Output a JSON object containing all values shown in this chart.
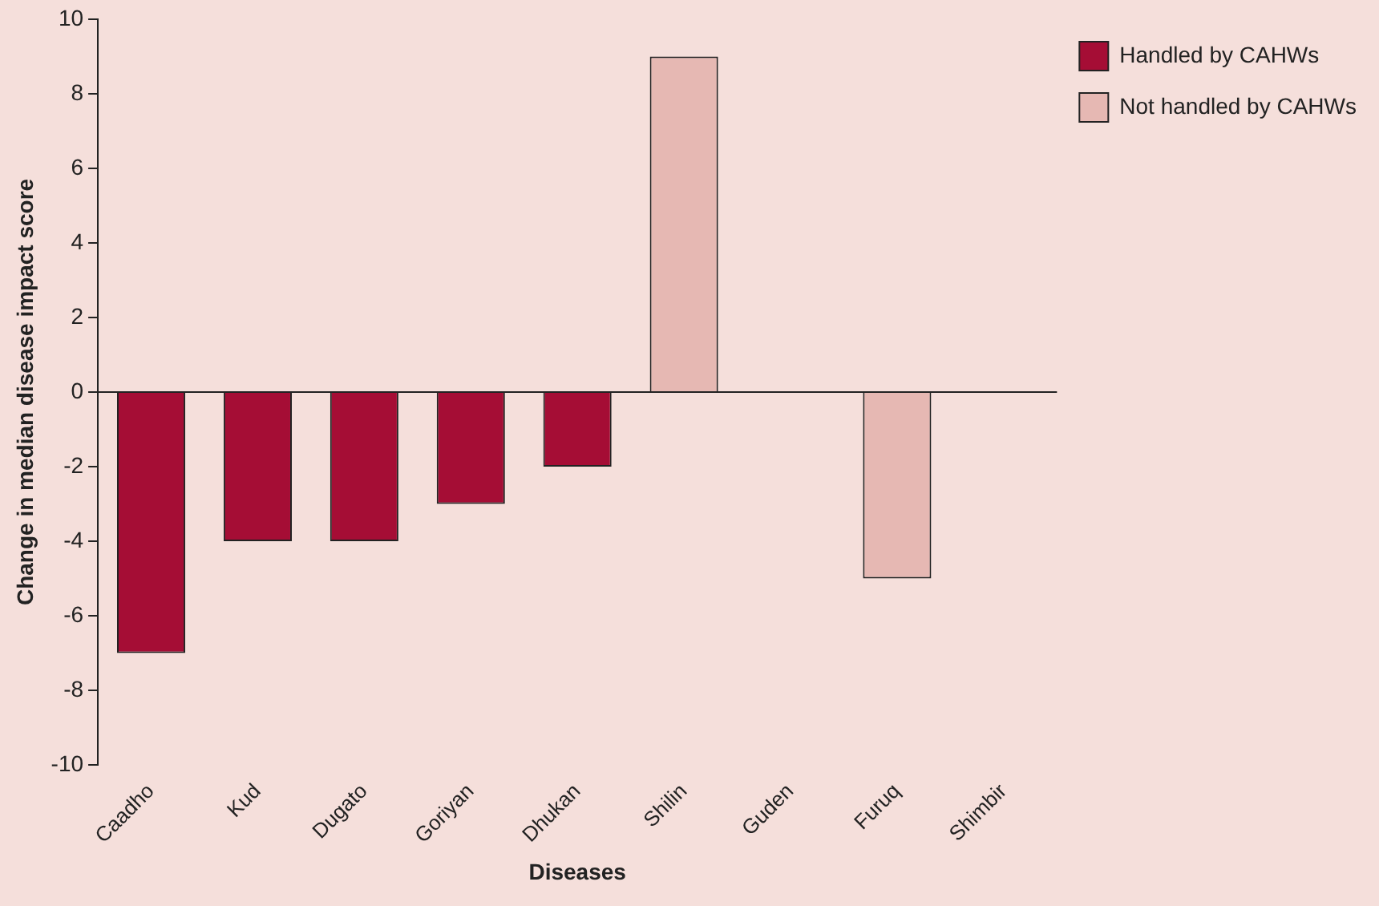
{
  "chart_data": {
    "type": "bar",
    "xlabel": "Diseases",
    "ylabel": "Change in median disease impact score",
    "categories": [
      "Caadho",
      "Kud",
      "Dugato",
      "Goriyan",
      "Dhukan",
      "Shilin",
      "Guden",
      "Furuq",
      "Shimbir"
    ],
    "series": [
      {
        "name": "Handled by CAHWs",
        "color": "#a50d35",
        "values": [
          -7,
          -4,
          -4,
          -3,
          -2,
          null,
          null,
          null,
          null
        ]
      },
      {
        "name": "Not handled by CAHWs",
        "color": "#e6b8b3",
        "values": [
          null,
          null,
          null,
          null,
          null,
          9,
          null,
          -5,
          null
        ]
      }
    ],
    "ylim": [
      -10,
      10
    ],
    "yticks": [
      -10,
      -8,
      -6,
      -4,
      -2,
      0,
      2,
      4,
      6,
      8,
      10
    ],
    "ref_lines": [
      {
        "axis": "y",
        "value": 0,
        "color": "#222222"
      }
    ],
    "grid": false,
    "legend": "top right"
  }
}
